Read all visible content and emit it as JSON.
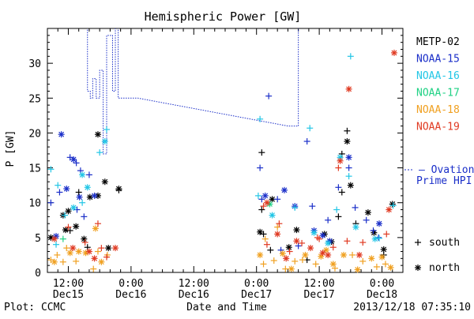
{
  "chart_data": {
    "type": "scatter",
    "title": "Hemispheric Power [GW]",
    "ylabel": "P [GW]",
    "xlabel": "Date and Time",
    "ylim": [
      0,
      35
    ],
    "yticks": [
      0,
      5,
      10,
      15,
      20,
      25,
      30
    ],
    "xlim": [
      0,
      102
    ],
    "xtick_positions": [
      12,
      36,
      60,
      84
    ],
    "xticks_minor": [
      0,
      24,
      48,
      72,
      96
    ],
    "xtick_time_labels": [
      "12:00",
      "0:00",
      "12:00",
      "0:00",
      "12:00",
      "0:00"
    ],
    "xtick_time_positions": [
      6,
      24,
      42,
      60,
      78,
      96
    ],
    "xtick_date_labels": [
      "Dec15",
      "Dec16",
      "Dec16",
      "Dec17",
      "Dec17",
      "Dec18"
    ],
    "xtick_date_positions": [
      6,
      24,
      42,
      60,
      78,
      96
    ],
    "legend": [
      {
        "name": "METP-02",
        "color": "#000000"
      },
      {
        "name": "NOAA-15",
        "color": "#1b2fc9"
      },
      {
        "name": "NOAA-16",
        "color": "#22c6e6"
      },
      {
        "name": "NOAA-17",
        "color": "#1fd184"
      },
      {
        "name": "NOAA-18",
        "color": "#f0a020"
      },
      {
        "name": "NOAA-19",
        "color": "#e03a22"
      }
    ],
    "marker_legend": [
      {
        "symbol": "+",
        "label": "south"
      },
      {
        "symbol": "*",
        "label": "north"
      }
    ],
    "ovation_label_line1": "— Ovation",
    "ovation_label_line2": "Prime HPI",
    "ovation_color": "#1b2fc9",
    "ovation_line": [
      [
        11.5,
        35.5
      ],
      [
        11.5,
        26
      ],
      [
        12.3,
        26
      ],
      [
        12.3,
        25
      ],
      [
        13,
        25
      ],
      [
        13,
        27.8
      ],
      [
        14,
        27.8
      ],
      [
        14,
        25
      ],
      [
        15,
        25
      ],
      [
        15,
        29
      ],
      [
        16,
        29
      ],
      [
        16,
        17
      ],
      [
        17,
        17
      ],
      [
        17,
        34
      ],
      [
        18.7,
        34
      ],
      [
        18.7,
        26
      ],
      [
        19.5,
        26
      ],
      [
        19.5,
        35.5
      ],
      [
        20.3,
        35.5
      ],
      [
        20.3,
        25
      ],
      [
        26,
        25
      ],
      [
        69,
        21
      ],
      [
        72,
        21
      ],
      [
        72,
        35.5
      ]
    ],
    "series": [
      {
        "name": "METP-02",
        "color": "#000000",
        "south": [
          [
            9,
            11.5
          ],
          [
            20.5,
            11.8
          ],
          [
            61.5,
            17.2
          ],
          [
            61.5,
            9
          ],
          [
            84.5,
            11.5
          ],
          [
            84.5,
            17
          ],
          [
            86,
            20.3
          ],
          [
            64,
            3.2
          ],
          [
            62,
            5.5
          ],
          [
            83.5,
            8
          ],
          [
            88.5,
            7
          ],
          [
            96.5,
            2.5
          ],
          [
            74.5,
            1.8
          ],
          [
            6.5,
            6
          ],
          [
            11.5,
            3.6
          ]
        ],
        "north": [
          [
            4.5,
            8.2
          ],
          [
            6,
            8.8
          ],
          [
            8.2,
            6.6
          ],
          [
            12.2,
            10.8
          ],
          [
            16.5,
            13
          ],
          [
            14.5,
            19.8
          ],
          [
            14.5,
            11
          ],
          [
            20.5,
            12
          ],
          [
            61,
            5.8
          ],
          [
            69.3,
            3.6
          ],
          [
            71.5,
            6.1
          ],
          [
            79.5,
            5.5
          ],
          [
            81.5,
            4.4
          ],
          [
            87,
            12.5
          ],
          [
            86,
            18.8
          ],
          [
            96.5,
            3.3
          ],
          [
            99,
            9.8
          ],
          [
            1,
            5
          ],
          [
            5.2,
            6.1
          ],
          [
            10.5,
            4.8
          ],
          [
            17.5,
            3.5
          ],
          [
            64.5,
            10.5
          ],
          [
            93.7,
            5.7
          ],
          [
            92,
            8.6
          ]
        ]
      },
      {
        "name": "NOAA-15",
        "color": "#1b2fc9",
        "south": [
          [
            1,
            10
          ],
          [
            3.5,
            11.5
          ],
          [
            6.5,
            16.5
          ],
          [
            8.3,
            15.7
          ],
          [
            9.5,
            14.6
          ],
          [
            12,
            14
          ],
          [
            8.5,
            9
          ],
          [
            10.5,
            8
          ],
          [
            63.5,
            25.3
          ],
          [
            61,
            15
          ],
          [
            74.5,
            18.8
          ],
          [
            66,
            10.5
          ],
          [
            61.5,
            10.5
          ],
          [
            83.5,
            12.2
          ],
          [
            86.5,
            15
          ],
          [
            91.5,
            7.5
          ],
          [
            88.3,
            9.3
          ],
          [
            76,
            9.5
          ],
          [
            80.5,
            7.5
          ],
          [
            93.5,
            6
          ],
          [
            95,
            5
          ],
          [
            72,
            3.8
          ],
          [
            67,
            3.2
          ]
        ],
        "north": [
          [
            4,
            19.8
          ],
          [
            7.5,
            16.2
          ],
          [
            5.5,
            12
          ],
          [
            13.5,
            11
          ],
          [
            9.2,
            10.8
          ],
          [
            71,
            9.5
          ],
          [
            68,
            11.8
          ],
          [
            62.5,
            11
          ],
          [
            79,
            5.3
          ],
          [
            86.5,
            16.5
          ],
          [
            95.2,
            7
          ],
          [
            76.5,
            6
          ],
          [
            2.5,
            5.2
          ],
          [
            81,
            4.5
          ]
        ]
      },
      {
        "name": "NOAA-16",
        "color": "#22c6e6",
        "south": [
          [
            1,
            14.8
          ],
          [
            15,
            17.2
          ],
          [
            17,
            20.5
          ],
          [
            3,
            12.5
          ],
          [
            10,
            10
          ],
          [
            5,
            8.2
          ],
          [
            61,
            22
          ],
          [
            75.3,
            20.7
          ],
          [
            87,
            31
          ],
          [
            95.2,
            4.9
          ],
          [
            99.2,
            9.6
          ],
          [
            83,
            9
          ],
          [
            86.5,
            13.8
          ],
          [
            71,
            9.3
          ],
          [
            60.5,
            11
          ],
          [
            2.5,
            4
          ]
        ],
        "north": [
          [
            10,
            14
          ],
          [
            16.5,
            18.8
          ],
          [
            11.5,
            12.2
          ],
          [
            7.5,
            9.3
          ],
          [
            64.5,
            8.2
          ],
          [
            76.5,
            5.7
          ],
          [
            88.5,
            6.5
          ],
          [
            94,
            4.8
          ],
          [
            84,
            16.5
          ],
          [
            80.5,
            4.2
          ]
        ]
      },
      {
        "name": "NOAA-17",
        "color": "#1fd184",
        "south": [
          [
            4.5,
            4.8
          ]
        ],
        "north": [
          [
            63.8,
            9.8
          ]
        ]
      },
      {
        "name": "NOAA-18",
        "color": "#f0a020",
        "south": [
          [
            1,
            1.8
          ],
          [
            2.8,
            2.5
          ],
          [
            4.5,
            1.5
          ],
          [
            5.5,
            3.5
          ],
          [
            8.2,
            1.6
          ],
          [
            13.2,
            0.5
          ],
          [
            14.5,
            3
          ],
          [
            17.2,
            2.5
          ],
          [
            62,
            1.2
          ],
          [
            65,
            1.7
          ],
          [
            68.3,
            0.5
          ],
          [
            71,
            1.6
          ],
          [
            73.2,
            1.8
          ],
          [
            82.5,
            0.6
          ],
          [
            87.5,
            2.5
          ],
          [
            90.5,
            1.6
          ],
          [
            97,
            1.2
          ],
          [
            66,
            6.5
          ],
          [
            62.5,
            4.8
          ],
          [
            77,
            1.2
          ],
          [
            94.5,
            0.8
          ]
        ],
        "north": [
          [
            2,
            1.5
          ],
          [
            6.5,
            2.8
          ],
          [
            9,
            3
          ],
          [
            11,
            2.8
          ],
          [
            15.5,
            1.5
          ],
          [
            61,
            2.5
          ],
          [
            67.5,
            2.7
          ],
          [
            70,
            0.5
          ],
          [
            74,
            2.5
          ],
          [
            78.5,
            2.3
          ],
          [
            82,
            1.2
          ],
          [
            85,
            2.5
          ],
          [
            89,
            0.4
          ],
          [
            96,
            2.2
          ],
          [
            98.5,
            0.7
          ],
          [
            13.8,
            6.3
          ],
          [
            80,
            3.2
          ],
          [
            93,
            2
          ]
        ]
      },
      {
        "name": "NOAA-19",
        "color": "#e03a22",
        "south": [
          [
            6,
            6.5
          ],
          [
            10.8,
            4.3
          ],
          [
            15.5,
            3.5
          ],
          [
            17,
            2.2
          ],
          [
            63,
            4
          ],
          [
            66.5,
            7
          ],
          [
            69.5,
            3
          ],
          [
            73,
            4.2
          ],
          [
            77.5,
            5
          ],
          [
            82,
            3.6
          ],
          [
            86,
            4.5
          ],
          [
            90.5,
            4.3
          ],
          [
            83.5,
            15
          ],
          [
            62,
            9.5
          ],
          [
            14.5,
            7
          ],
          [
            78,
            4.8
          ],
          [
            97.3,
            5.5
          ]
        ],
        "north": [
          [
            2,
            4.8
          ],
          [
            7.3,
            3.5
          ],
          [
            12,
            3
          ],
          [
            13.5,
            2
          ],
          [
            19.5,
            3.5
          ],
          [
            63,
            10
          ],
          [
            68.5,
            2
          ],
          [
            71.5,
            4.5
          ],
          [
            75.5,
            3.5
          ],
          [
            80.5,
            2.5
          ],
          [
            84,
            16
          ],
          [
            86.5,
            26.3
          ],
          [
            99.5,
            31.5
          ],
          [
            89.5,
            2.5
          ],
          [
            98,
            9
          ],
          [
            66,
            5.5
          ],
          [
            79,
            2.8
          ]
        ]
      }
    ]
  },
  "footer": {
    "left": "Plot: CCMC",
    "right": "2013/12/18 07:35:10"
  }
}
